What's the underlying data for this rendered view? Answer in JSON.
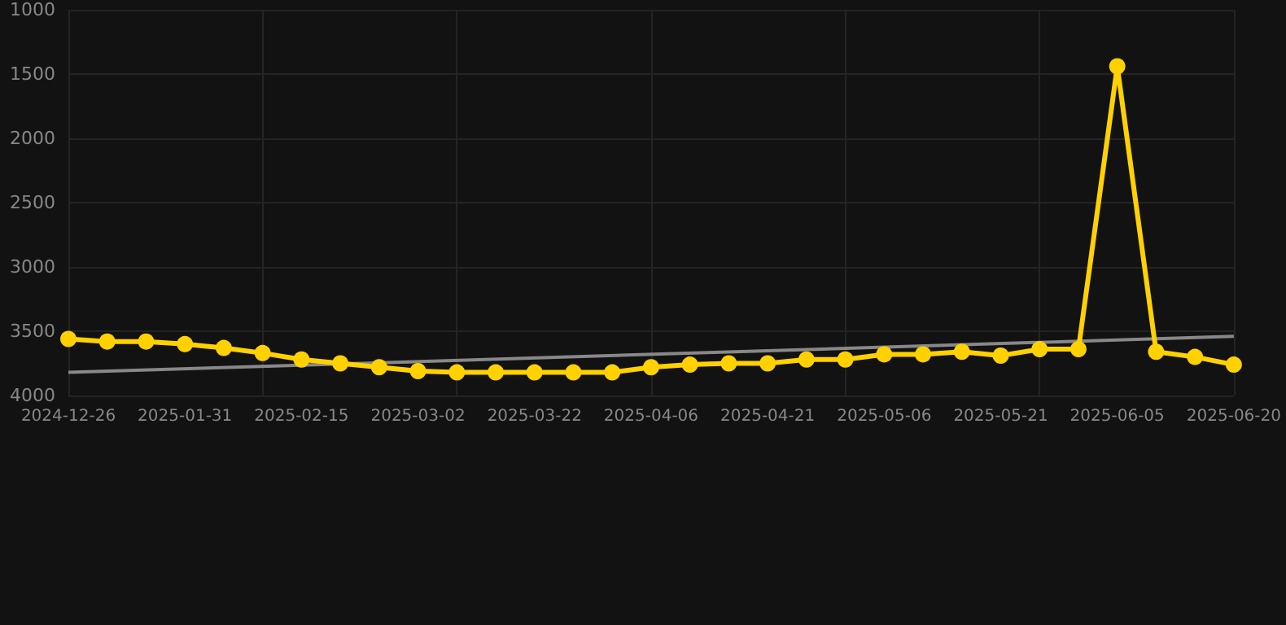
{
  "chart_data": {
    "type": "line",
    "categories": [
      "2024-12-26",
      null,
      null,
      "2025-01-31",
      null,
      null,
      "2025-02-15",
      null,
      null,
      "2025-03-02",
      null,
      null,
      "2025-03-22",
      null,
      null,
      "2025-04-06",
      null,
      null,
      "2025-04-21",
      null,
      null,
      "2025-05-06",
      null,
      null,
      "2025-05-21",
      null,
      null,
      "2025-06-05",
      null,
      null,
      "2025-06-20"
    ],
    "series": [
      {
        "color": "#ffd100",
        "values": [
          3560,
          3580,
          3580,
          3600,
          3630,
          3670,
          3720,
          3750,
          3780,
          3810,
          3820,
          3820,
          3820,
          3820,
          3820,
          3780,
          3760,
          3750,
          3750,
          3720,
          3720,
          3680,
          3680,
          3660,
          3690,
          3640,
          3640,
          1440,
          3660,
          3700,
          3760
        ],
        "marker": "circle"
      },
      {
        "type": "line",
        "color": "#888888",
        "values": [
          3820,
          null,
          null,
          null,
          null,
          null,
          null,
          null,
          null,
          null,
          null,
          null,
          null,
          null,
          null,
          null,
          null,
          null,
          null,
          null,
          null,
          null,
          null,
          null,
          null,
          null,
          null,
          null,
          null,
          null,
          3540
        ],
        "marker": "none"
      }
    ],
    "ylim": [
      4000,
      1000
    ],
    "yticks": [
      1000,
      1500,
      2000,
      2500,
      3000,
      3500,
      4000
    ],
    "grid": true
  }
}
